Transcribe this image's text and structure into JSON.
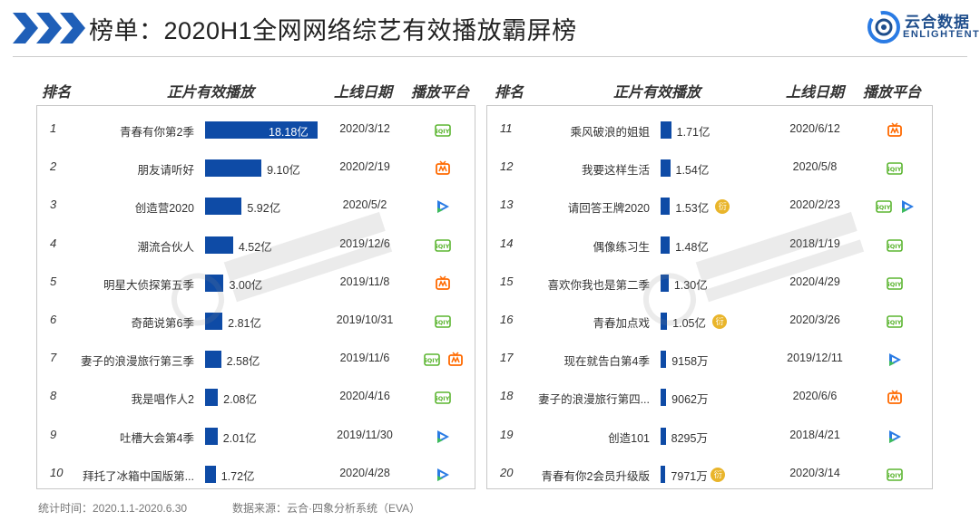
{
  "header": {
    "title": "榜单：2020H1全网网络综艺有效播放霸屏榜",
    "logo_cn": "云合数据",
    "logo_en": "ENLIGHTENT"
  },
  "columns": {
    "rank": "排名",
    "plays": "正片有效播放",
    "date": "上线日期",
    "platform": "播放平台"
  },
  "colors": {
    "bar": "#0e4ba6",
    "iqiyi": "#5cb531",
    "mango": "#ff6a00",
    "tencent_blue": "#2a7be4",
    "tencent_green": "#3dbb5c",
    "heng": "#e9b52b"
  },
  "chart_data": {
    "type": "bar",
    "unit_note": "values in 亿 (100 million plays)",
    "categories": [
      "青春有你第2季",
      "朋友请听好",
      "创造营2020",
      "潮流合伙人",
      "明星大侦探第五季",
      "奇葩说第6季",
      "妻子的浪漫旅行第三季",
      "我是唱作人2",
      "吐槽大会第4季",
      "拜托了冰箱中国版第...",
      "乘风破浪的姐姐",
      "我要这样生活",
      "请回答王牌2020",
      "偶像练习生",
      "喜欢你我也是第二季",
      "青春加点戏",
      "现在就告白第4季",
      "妻子的浪漫旅行第四...",
      "创造101",
      "青春有你2会员升级版"
    ],
    "values": [
      18.18,
      9.1,
      5.92,
      4.52,
      3.0,
      2.81,
      2.58,
      2.08,
      2.01,
      1.72,
      1.71,
      1.54,
      1.53,
      1.48,
      1.3,
      1.05,
      0.9158,
      0.9062,
      0.8295,
      0.7971
    ],
    "rows": [
      {
        "rank": "1",
        "name": "青春有你第2季",
        "value": 18.18,
        "label": "18.18亿",
        "date": "2020/3/12",
        "platforms": [
          "iqiyi"
        ],
        "heng": false
      },
      {
        "rank": "2",
        "name": "朋友请听好",
        "value": 9.1,
        "label": "9.10亿",
        "date": "2020/2/19",
        "platforms": [
          "mango"
        ],
        "heng": false
      },
      {
        "rank": "3",
        "name": "创造营2020",
        "value": 5.92,
        "label": "5.92亿",
        "date": "2020/5/2",
        "platforms": [
          "tencent"
        ],
        "heng": false
      },
      {
        "rank": "4",
        "name": "潮流合伙人",
        "value": 4.52,
        "label": "4.52亿",
        "date": "2019/12/6",
        "platforms": [
          "iqiyi"
        ],
        "heng": false
      },
      {
        "rank": "5",
        "name": "明星大侦探第五季",
        "value": 3.0,
        "label": "3.00亿",
        "date": "2019/11/8",
        "platforms": [
          "mango"
        ],
        "heng": false
      },
      {
        "rank": "6",
        "name": "奇葩说第6季",
        "value": 2.81,
        "label": "2.81亿",
        "date": "2019/10/31",
        "platforms": [
          "iqiyi"
        ],
        "heng": false
      },
      {
        "rank": "7",
        "name": "妻子的浪漫旅行第三季",
        "value": 2.58,
        "label": "2.58亿",
        "date": "2019/11/6",
        "platforms": [
          "iqiyi",
          "mango"
        ],
        "heng": false
      },
      {
        "rank": "8",
        "name": "我是唱作人2",
        "value": 2.08,
        "label": "2.08亿",
        "date": "2020/4/16",
        "platforms": [
          "iqiyi"
        ],
        "heng": false
      },
      {
        "rank": "9",
        "name": "吐槽大会第4季",
        "value": 2.01,
        "label": "2.01亿",
        "date": "2019/11/30",
        "platforms": [
          "tencent"
        ],
        "heng": false
      },
      {
        "rank": "10",
        "name": "拜托了冰箱中国版第...",
        "value": 1.72,
        "label": "1.72亿",
        "date": "2020/4/28",
        "platforms": [
          "tencent"
        ],
        "heng": false
      },
      {
        "rank": "11",
        "name": "乘风破浪的姐姐",
        "value": 1.71,
        "label": "1.71亿",
        "date": "2020/6/12",
        "platforms": [
          "mango"
        ],
        "heng": false
      },
      {
        "rank": "12",
        "name": "我要这样生活",
        "value": 1.54,
        "label": "1.54亿",
        "date": "2020/5/8",
        "platforms": [
          "iqiyi"
        ],
        "heng": false
      },
      {
        "rank": "13",
        "name": "请回答王牌2020",
        "value": 1.53,
        "label": "1.53亿",
        "date": "2020/2/23",
        "platforms": [
          "iqiyi",
          "tencent"
        ],
        "heng": true
      },
      {
        "rank": "14",
        "name": "偶像练习生",
        "value": 1.48,
        "label": "1.48亿",
        "date": "2018/1/19",
        "platforms": [
          "iqiyi"
        ],
        "heng": false
      },
      {
        "rank": "15",
        "name": "喜欢你我也是第二季",
        "value": 1.3,
        "label": "1.30亿",
        "date": "2020/4/29",
        "platforms": [
          "iqiyi"
        ],
        "heng": false
      },
      {
        "rank": "16",
        "name": "青春加点戏",
        "value": 1.05,
        "label": "1.05亿",
        "date": "2020/3/26",
        "platforms": [
          "iqiyi"
        ],
        "heng": true
      },
      {
        "rank": "17",
        "name": "现在就告白第4季",
        "value": 0.9158,
        "label": "9158万",
        "date": "2019/12/11",
        "platforms": [
          "tencent"
        ],
        "heng": false
      },
      {
        "rank": "18",
        "name": "妻子的浪漫旅行第四...",
        "value": 0.9062,
        "label": "9062万",
        "date": "2020/6/6",
        "platforms": [
          "mango"
        ],
        "heng": false
      },
      {
        "rank": "19",
        "name": "创造101",
        "value": 0.8295,
        "label": "8295万",
        "date": "2018/4/21",
        "platforms": [
          "tencent"
        ],
        "heng": false
      },
      {
        "rank": "20",
        "name": "青春有你2会员升级版",
        "value": 0.7971,
        "label": "7971万",
        "date": "2020/3/14",
        "platforms": [
          "iqiyi"
        ],
        "heng": true
      }
    ]
  },
  "badges": {
    "heng": "衍",
    "iqiyi": "iQIY"
  },
  "footer": {
    "period": "统计时间：2020.1.1-2020.6.30",
    "source": "数据来源：云合·四象分析系统（EVA）"
  }
}
